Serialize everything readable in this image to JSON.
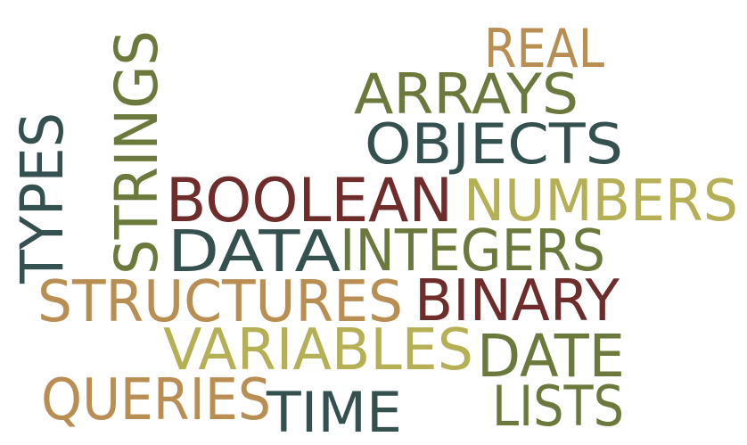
{
  "palette": {
    "dark_teal": "#34504F",
    "olive": "#6B7A3C",
    "khaki": "#B5B055",
    "tan": "#B88E52",
    "maroon": "#6E2C2A"
  },
  "words": [
    {
      "id": "real",
      "text": "REAL",
      "color": "#B88E52"
    },
    {
      "id": "arrays",
      "text": "ARRAYS",
      "color": "#6B7A3C"
    },
    {
      "id": "objects",
      "text": "OBJECTS",
      "color": "#34504F"
    },
    {
      "id": "boolean",
      "text": "BOOLEAN",
      "color": "#6E2C2A"
    },
    {
      "id": "numbers",
      "text": "NUMBERS",
      "color": "#B5B055"
    },
    {
      "id": "data",
      "text": "DATA",
      "color": "#34504F"
    },
    {
      "id": "integers",
      "text": "INTEGERS",
      "color": "#6B7A3C"
    },
    {
      "id": "structures",
      "text": "STRUCTURES",
      "color": "#B88E52"
    },
    {
      "id": "binary",
      "text": "BINARY",
      "color": "#6E2C2A"
    },
    {
      "id": "variables",
      "text": "VARIABLES",
      "color": "#B5B055"
    },
    {
      "id": "date",
      "text": "DATE",
      "color": "#6B7A3C"
    },
    {
      "id": "queries",
      "text": "QUERIES",
      "color": "#B88E52"
    },
    {
      "id": "time",
      "text": "TIME",
      "color": "#34504F"
    },
    {
      "id": "lists",
      "text": "LISTS",
      "color": "#6B7A3C"
    },
    {
      "id": "types",
      "text": "TYPES",
      "color": "#34504F"
    },
    {
      "id": "strings",
      "text": "STRINGS",
      "color": "#6B7A3C"
    }
  ]
}
